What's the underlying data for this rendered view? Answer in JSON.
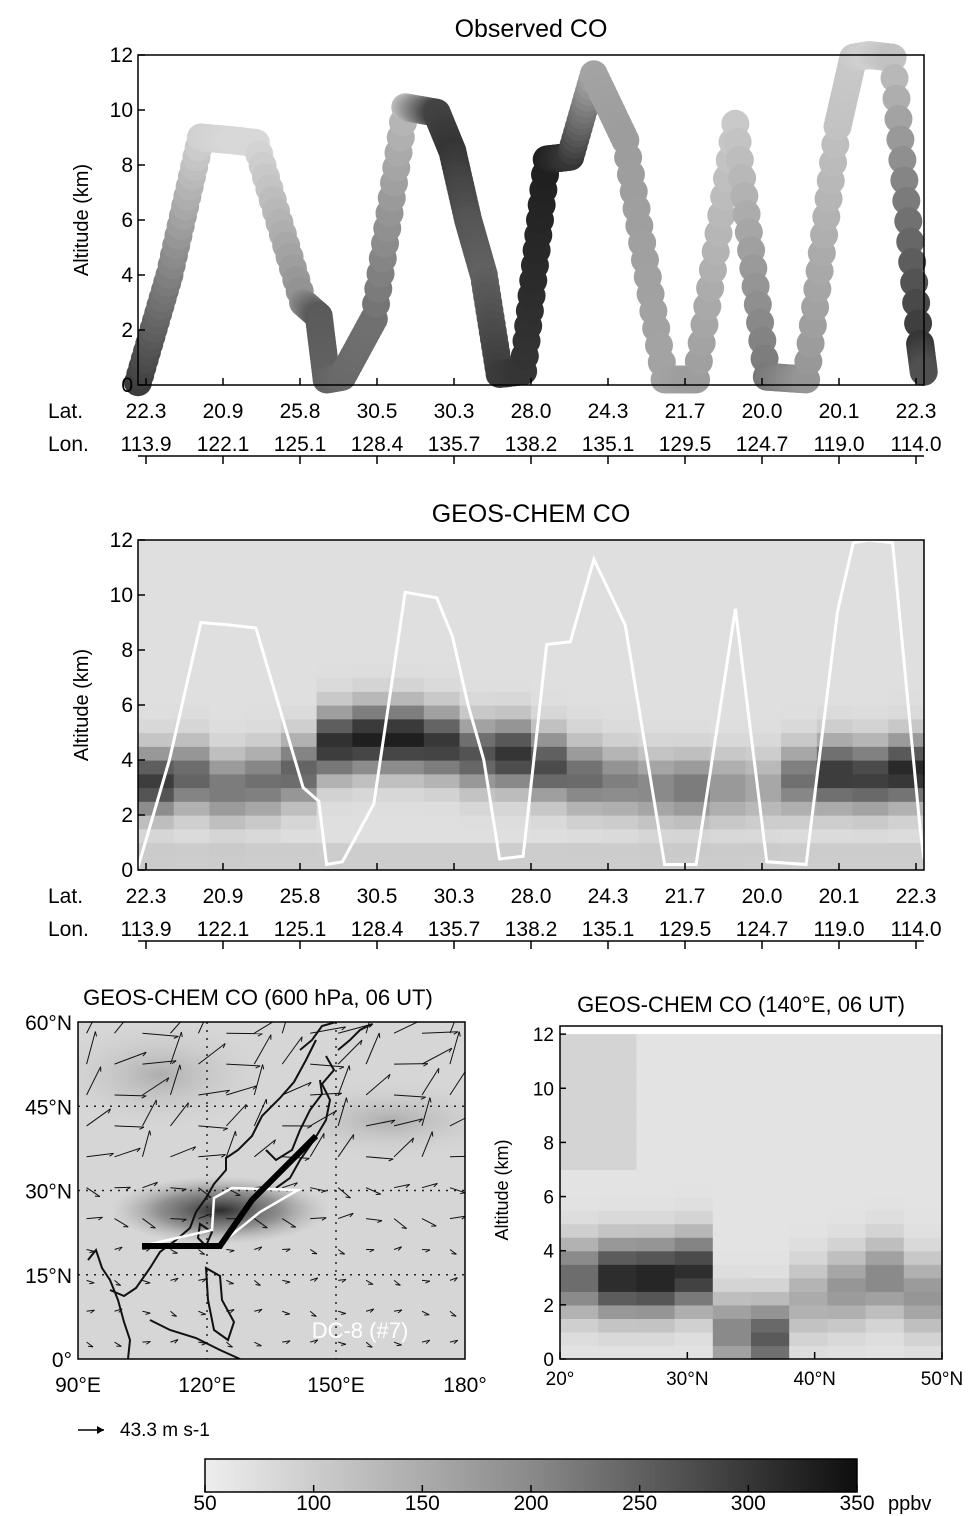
{
  "chart_data": [
    {
      "type": "scatter",
      "title": "Observed CO",
      "ylabel": "Altitude (km)",
      "ylim": [
        0,
        12
      ],
      "yticks": [
        "0",
        "2",
        "4",
        "6",
        "8",
        "10",
        "12"
      ],
      "x_row_labels": [
        "Lat.",
        "Lon."
      ],
      "lat_ticks": [
        "22.3",
        "20.9",
        "25.8",
        "30.5",
        "30.3",
        "28.0",
        "24.3",
        "21.7",
        "20.0",
        "20.1",
        "22.3"
      ],
      "lon_ticks": [
        "113.9",
        "122.1",
        "125.1",
        "128.4",
        "135.7",
        "138.2",
        "135.1",
        "129.5",
        "124.7",
        "119.0",
        "114.0"
      ],
      "flight_track": {
        "x": [
          0.0,
          0.4,
          0.8,
          1.2,
          1.5,
          2.1,
          2.3,
          2.4,
          2.6,
          3.0,
          3.4,
          3.8,
          4.0,
          4.2,
          4.4,
          4.6,
          4.9,
          5.2,
          5.5,
          5.8,
          6.2,
          6.7,
          7.1,
          7.6,
          8.0,
          8.5,
          8.9,
          9.1,
          9.3,
          9.6,
          9.95,
          10.0
        ],
        "altitude_km": [
          0.1,
          4.0,
          9.0,
          8.9,
          8.8,
          3.0,
          2.5,
          0.2,
          0.3,
          2.4,
          10.1,
          9.9,
          8.5,
          6.0,
          4.0,
          0.4,
          0.5,
          8.2,
          8.3,
          11.3,
          8.9,
          0.2,
          0.2,
          9.5,
          0.3,
          0.2,
          9.4,
          11.9,
          12.0,
          11.9,
          1.5,
          0.4
        ]
      },
      "co_ppbv": [
        290,
        200,
        90,
        80,
        80,
        180,
        250,
        240,
        230,
        220,
        120,
        280,
        300,
        260,
        240,
        290,
        300,
        330,
        300,
        150,
        160,
        150,
        160,
        100,
        210,
        170,
        110,
        100,
        90,
        110,
        300,
        260
      ]
    },
    {
      "type": "heatmap",
      "title": "GEOS-CHEM CO",
      "ylabel": "Altitude (km)",
      "ylim": [
        0,
        12
      ],
      "yticks": [
        "0",
        "2",
        "4",
        "6",
        "8",
        "10",
        "12"
      ],
      "x_row_labels": [
        "Lat.",
        "Lon."
      ],
      "lat_ticks": [
        "22.3",
        "20.9",
        "25.8",
        "30.5",
        "30.3",
        "28.0",
        "24.3",
        "21.7",
        "20.0",
        "20.1",
        "22.3"
      ],
      "lon_ticks": [
        "113.9",
        "122.1",
        "125.1",
        "128.4",
        "135.7",
        "138.2",
        "135.1",
        "129.5",
        "124.7",
        "119.0",
        "114.0"
      ],
      "columns_co_peak_ppbv": [
        290,
        240,
        210,
        220,
        240,
        310,
        330,
        330,
        300,
        260,
        300,
        270,
        230,
        200,
        190,
        210,
        170,
        150,
        220,
        300,
        290,
        320
      ],
      "columns_peak_altitude_km": [
        3.2,
        3.4,
        3.0,
        3.2,
        3.6,
        4.6,
        4.8,
        4.8,
        4.6,
        4.2,
        4.2,
        3.8,
        3.4,
        3.2,
        3.0,
        3.0,
        3.0,
        3.0,
        3.3,
        3.5,
        3.4,
        3.6
      ],
      "overlay": "flight track (white line)"
    },
    {
      "type": "map",
      "title": "GEOS-CHEM CO (600 hPa, 06 UT)",
      "x_ticks": [
        "90°E",
        "120°E",
        "150°E",
        "180°"
      ],
      "y_ticks": [
        "0°",
        "15°N",
        "30°N",
        "45°N",
        "60°N"
      ],
      "lon_range": [
        90,
        180
      ],
      "lat_range": [
        0,
        60
      ],
      "wind_reference": "43.3 m s-1",
      "track_label": "DC-8 (#7)",
      "co_plume": {
        "center_lon": 123,
        "center_lat": 26.5,
        "peak_ppbv": 330
      }
    },
    {
      "type": "heatmap",
      "title": "GEOS-CHEM CO (140°E, 06 UT)",
      "ylabel": "Altitude (km)",
      "ylim": [
        0,
        12
      ],
      "yticks": [
        "0",
        "2",
        "4",
        "6",
        "8",
        "10",
        "12"
      ],
      "x_ticks": [
        "20°",
        "30°N",
        "40°N",
        "50°N"
      ],
      "xlim": [
        20,
        50
      ],
      "columns_lat": [
        20,
        23,
        26,
        29,
        32,
        35,
        38,
        41,
        44,
        47,
        50
      ],
      "columns_co_peak_ppbv": [
        230,
        320,
        330,
        310,
        190,
        250,
        140,
        170,
        190,
        170
      ],
      "columns_peak_altitude_km": [
        3.0,
        3.0,
        3.0,
        3.2,
        1.0,
        0.8,
        2.2,
        2.6,
        3.0,
        2.4
      ]
    }
  ],
  "colorbar": {
    "min": 50,
    "max": 350,
    "ticks": [
      "50",
      "100",
      "150",
      "200",
      "250",
      "300",
      "350"
    ],
    "unit": "ppbv"
  },
  "colors": {
    "background": "#ffffff",
    "low": "#e6e6e6",
    "high": "#111111",
    "track": "#ffffff"
  }
}
